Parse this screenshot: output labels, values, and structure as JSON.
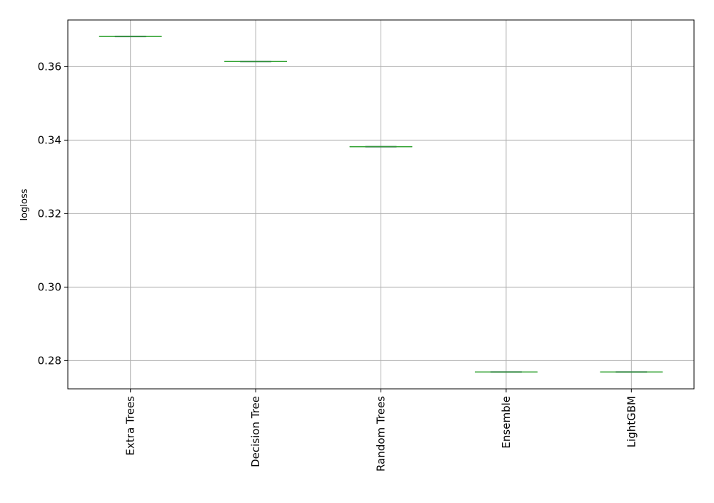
{
  "chart_data": {
    "type": "box",
    "title": "",
    "xlabel": "",
    "ylabel": "logloss",
    "categories": [
      "Extra Trees",
      "Decision Tree",
      "Random Trees",
      "Ensemble",
      "LightGBM"
    ],
    "values": [
      0.3682,
      0.3614,
      0.3382,
      0.2769,
      0.2769
    ],
    "ylim": [
      0.2723,
      0.3727
    ],
    "yticks": [
      0.28,
      0.3,
      0.32,
      0.34,
      0.36
    ],
    "ytick_labels": [
      "0.28",
      "0.30",
      "0.32",
      "0.34",
      "0.36"
    ],
    "grid": true,
    "colors": {
      "median": "#2ca02c",
      "box": "#1f77b4",
      "grid": "#b0b0b0",
      "axis": "#000000"
    }
  }
}
